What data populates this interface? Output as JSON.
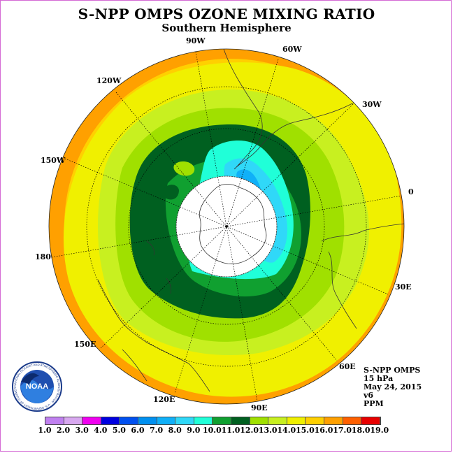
{
  "header": {
    "title": "S-NPP OMPS OZONE MIXING RATIO",
    "subtitle": "Southern Hemisphere"
  },
  "longitude_labels": {
    "lon_90w": "90W",
    "lon_60w": "60W",
    "lon_30w": "30W",
    "lon_0": "0",
    "lon_30e": "30E",
    "lon_60e": "60E",
    "lon_90e": "90E",
    "lon_120e": "120E",
    "lon_150e": "150E",
    "lon_180": "180",
    "lon_150w": "150W",
    "lon_120w": "120W"
  },
  "info": {
    "instrument": "S-NPP OMPS",
    "pressure_level": "15 hPa",
    "date": "May 24, 2015",
    "version": "v6",
    "units": "PPM"
  },
  "logo": {
    "text": "NOAA",
    "ring_text": "NATIONAL OCEANIC AND ATMOSPHERIC ADMINISTRATION · U.S. DEPARTMENT OF COMMERCE"
  },
  "colorbar": {
    "ticks": [
      "1.0",
      "2.0",
      "3.0",
      "4.0",
      "5.0",
      "6.0",
      "7.0",
      "8.0",
      "9.0",
      "10.0",
      "11.0",
      "12.0",
      "13.0",
      "14.0",
      "15.0",
      "16.0",
      "17.0",
      "18.0",
      "19.0"
    ],
    "colors": [
      "#c080f0",
      "#d8a8f0",
      "#f000f0",
      "#0000e0",
      "#0050f0",
      "#0090f0",
      "#10b0f8",
      "#30d8f8",
      "#20ffd8",
      "#10a030",
      "#006020",
      "#a0e000",
      "#c8f020",
      "#f0f000",
      "#ffd000",
      "#ffa000",
      "#ff6000",
      "#e80000",
      "#805030"
    ]
  },
  "map_colors": {
    "ppm_8_9": "#20ffd8",
    "ppm_7_8": "#30d8f8",
    "ppm_6_7": "#10b0f8",
    "ppm_10_11": "#006020",
    "ppm_9_10": "#10a030",
    "ppm_11_12": "#a0e000",
    "ppm_12_13": "#c8f020",
    "ppm_13_14": "#f0f000",
    "ppm_14_15": "#ffd000",
    "ppm_15_16": "#ffa000",
    "no_data": "#ffffff"
  }
}
